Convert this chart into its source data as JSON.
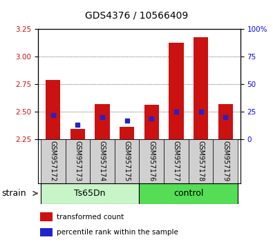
{
  "title": "GDS4376 / 10566409",
  "samples": [
    "GSM957172",
    "GSM957173",
    "GSM957174",
    "GSM957175",
    "GSM957176",
    "GSM957177",
    "GSM957178",
    "GSM957179"
  ],
  "red_values": [
    2.79,
    2.34,
    2.57,
    2.36,
    2.56,
    3.13,
    3.18,
    2.57
  ],
  "blue_values": [
    2.47,
    2.38,
    2.45,
    2.42,
    2.44,
    2.5,
    2.5,
    2.45
  ],
  "baseline": 2.25,
  "ylim_left": [
    2.25,
    3.25
  ],
  "ylim_right": [
    0,
    100
  ],
  "yticks_left": [
    2.25,
    2.5,
    2.75,
    3.0,
    3.25
  ],
  "yticks_right": [
    0,
    25,
    50,
    75,
    100
  ],
  "ytick_labels_right": [
    "0",
    "25",
    "50",
    "75",
    "100%"
  ],
  "groups": [
    {
      "label": "Ts65Dn",
      "indices": [
        0,
        1,
        2,
        3
      ],
      "color": "#c8f5c8"
    },
    {
      "label": "control",
      "indices": [
        4,
        5,
        6,
        7
      ],
      "color": "#55dd55"
    }
  ],
  "group_label": "strain",
  "red_color": "#cc1111",
  "blue_color": "#2222cc",
  "bar_width": 0.6,
  "sample_box_color": "#d0d0d0",
  "legend_red": "transformed count",
  "legend_blue": "percentile rank within the sample",
  "title_fontsize": 10,
  "tick_fontsize": 7.5,
  "sample_fontsize": 7,
  "group_fontsize": 9
}
